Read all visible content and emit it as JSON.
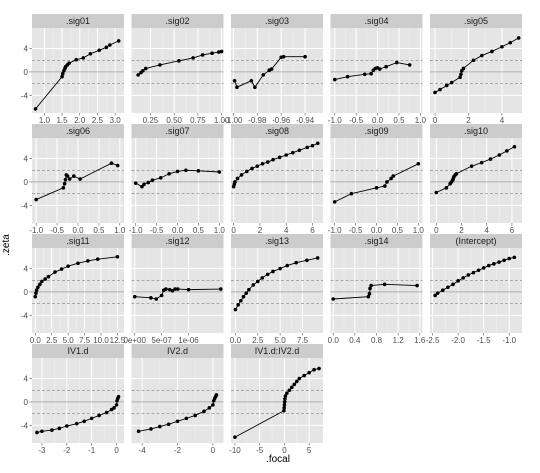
{
  "figure": {
    "xlabel": ".focal",
    "ylabel": ".zeta",
    "colors": {
      "panel_bg": "#e5e5e5",
      "strip_bg": "#cccccc",
      "grid_major": "#ffffff",
      "grid_minor": "#f2f2f2",
      "line": "#000000",
      "ref_line": "#808080"
    }
  },
  "chart_data": [
    {
      "type": "line",
      "title": ".sig01",
      "xlim": [
        0.65,
        3.25
      ],
      "ylim": [
        -7,
        7.5
      ],
      "xticks": [
        1.0,
        1.5,
        2.0,
        2.5,
        3.0
      ],
      "xticklabels": [
        "1.0",
        "1.5",
        "2.0",
        "2.5",
        "3.0"
      ],
      "x": [
        0.75,
        1.5,
        1.52,
        1.55,
        1.58,
        1.6,
        1.65,
        1.7,
        1.9,
        2.1,
        2.3,
        2.55,
        2.75,
        2.85,
        3.1
      ],
      "y": [
        -6.3,
        -0.8,
        -0.3,
        0.2,
        0.6,
        0.9,
        1.2,
        1.5,
        2.1,
        2.4,
        3.1,
        3.7,
        4.2,
        4.6,
        5.3
      ]
    },
    {
      "type": "line",
      "title": ".sig02",
      "xlim": [
        0.05,
        1.02
      ],
      "ylim": [
        -7,
        7.5
      ],
      "xticks": [
        0.25,
        0.5,
        0.75,
        1.0
      ],
      "xticklabels": [
        "0.25",
        "0.50",
        "0.75",
        "1.00"
      ],
      "x": [
        0.12,
        0.15,
        0.17,
        0.2,
        0.35,
        0.55,
        0.7,
        0.8,
        0.9,
        0.97,
        1.0
      ],
      "y": [
        -0.5,
        -0.1,
        0.2,
        0.6,
        1.2,
        1.9,
        2.4,
        2.9,
        3.2,
        3.4,
        3.5
      ]
    },
    {
      "type": "line",
      "title": ".sig03",
      "xlim": [
        -1.002,
        -0.925
      ],
      "ylim": [
        -7,
        7.5
      ],
      "xticks": [
        -1.0,
        -0.98,
        -0.96,
        -0.94
      ],
      "xticklabels": [
        "-1.00",
        "-0.98",
        "-0.96",
        "-0.94"
      ],
      "x": [
        -0.999,
        -0.997,
        -0.985,
        -0.982,
        -0.975,
        -0.97,
        -0.968,
        -0.96,
        -0.958,
        -0.94
      ],
      "y": [
        -1.5,
        -2.6,
        -1.5,
        -2.6,
        -0.5,
        0.3,
        0.5,
        2.5,
        2.6,
        2.6
      ]
    },
    {
      "type": "line",
      "title": ".sig04",
      "xlim": [
        -1.1,
        1.05
      ],
      "ylim": [
        -7,
        7.5
      ],
      "xticks": [
        -1.0,
        -0.5,
        0.0,
        0.5,
        1.0
      ],
      "xticklabels": [
        "-1.0",
        "-0.5",
        "0.0",
        "0.5",
        "1.0"
      ],
      "x": [
        -1.0,
        -0.7,
        -0.3,
        -0.15,
        -0.1,
        -0.05,
        0.0,
        0.05,
        0.2,
        0.45,
        0.75
      ],
      "y": [
        -1.3,
        -0.8,
        -0.4,
        -0.3,
        0.3,
        0.6,
        0.7,
        0.5,
        0.9,
        1.6,
        1.2
      ]
    },
    {
      "type": "line",
      "title": ".sig05",
      "xlim": [
        -0.3,
        5.2
      ],
      "ylim": [
        -7,
        7.5
      ],
      "xticks": [
        0,
        2,
        4
      ],
      "xticklabels": [
        "0",
        "2",
        "4"
      ],
      "x": [
        0.0,
        0.3,
        0.7,
        1.0,
        1.5,
        1.55,
        1.6,
        1.7,
        2.3,
        2.8,
        3.4,
        4.0,
        4.5,
        5.0
      ],
      "y": [
        -3.5,
        -3.0,
        -2.3,
        -1.8,
        -0.9,
        -0.4,
        0.2,
        0.6,
        2.0,
        2.8,
        3.5,
        4.3,
        5.0,
        5.8
      ]
    },
    {
      "type": "line",
      "title": ".sig06",
      "xlim": [
        -1.1,
        1.1
      ],
      "ylim": [
        -7,
        7.5
      ],
      "xticks": [
        -1.0,
        -0.5,
        0.0,
        0.5,
        1.0
      ],
      "xticklabels": [
        "-1.0",
        "-0.5",
        "0.0",
        "0.5",
        "1.0"
      ],
      "x": [
        -1.0,
        -0.35,
        -0.32,
        -0.3,
        -0.28,
        -0.25,
        -0.2,
        -0.1,
        0.05,
        0.8,
        0.95
      ],
      "y": [
        -3.0,
        -1.0,
        -0.3,
        0.4,
        1.2,
        1.0,
        0.5,
        1.0,
        0.5,
        3.2,
        2.8
      ]
    },
    {
      "type": "line",
      "title": ".sig07",
      "xlim": [
        -1.1,
        1.1
      ],
      "ylim": [
        -7,
        7.5
      ],
      "xticks": [
        -1.0,
        -0.5,
        0.0,
        0.5,
        1.0
      ],
      "xticklabels": [
        "-1.0",
        "-0.5",
        "0.0",
        "0.5",
        "1.0"
      ],
      "x": [
        -1.0,
        -0.85,
        -0.8,
        -0.7,
        -0.6,
        -0.4,
        -0.2,
        0.0,
        0.2,
        0.5,
        1.0
      ],
      "y": [
        -0.2,
        -0.8,
        -0.4,
        -0.1,
        0.3,
        0.7,
        1.4,
        1.8,
        2.0,
        1.9,
        1.7
      ]
    },
    {
      "type": "line",
      "title": ".sig08",
      "xlim": [
        -0.2,
        6.8
      ],
      "ylim": [
        -7,
        7.5
      ],
      "xticks": [
        0,
        2,
        4,
        6
      ],
      "xticklabels": [
        "0",
        "2",
        "4",
        "6"
      ],
      "x": [
        0.0,
        0.05,
        0.1,
        0.3,
        0.6,
        1.0,
        1.4,
        1.8,
        2.2,
        2.6,
        3.0,
        3.5,
        4.0,
        4.5,
        5.0,
        5.6,
        6.0,
        6.4
      ],
      "y": [
        -0.8,
        -0.4,
        0.0,
        0.6,
        1.2,
        1.8,
        2.3,
        2.7,
        3.1,
        3.4,
        3.8,
        4.2,
        4.6,
        5.0,
        5.4,
        5.9,
        6.2,
        6.6
      ]
    },
    {
      "type": "line",
      "title": ".sig09",
      "xlim": [
        -1.1,
        1.1
      ],
      "ylim": [
        -7,
        7.5
      ],
      "xticks": [
        -1.0,
        -0.5,
        0.0,
        0.5,
        1.0
      ],
      "xticklabels": [
        "-1.0",
        "-0.5",
        "0.0",
        "0.5",
        "1.0"
      ],
      "x": [
        -1.0,
        -0.6,
        0.0,
        0.2,
        0.25,
        0.35,
        0.4,
        1.0
      ],
      "y": [
        -3.4,
        -2.0,
        -1.0,
        -0.7,
        0.0,
        0.6,
        1.0,
        3.1
      ]
    },
    {
      "type": "line",
      "title": ".sig10",
      "xlim": [
        -0.5,
        6.8
      ],
      "ylim": [
        -7,
        7.5
      ],
      "xticks": [
        0,
        2,
        4,
        6
      ],
      "xticklabels": [
        "0",
        "2",
        "4",
        "6"
      ],
      "x": [
        0.0,
        0.8,
        1.1,
        1.2,
        1.3,
        1.35,
        1.4,
        1.5,
        1.6,
        2.8,
        3.6,
        4.3,
        5.0,
        5.6,
        6.2
      ],
      "y": [
        -1.8,
        -1.0,
        -0.3,
        0.0,
        0.3,
        0.6,
        0.9,
        1.2,
        1.4,
        2.7,
        3.3,
        3.9,
        4.6,
        5.3,
        6.0
      ]
    },
    {
      "type": "line",
      "title": ".sig11",
      "xlim": [
        -0.5,
        13.5
      ],
      "ylim": [
        -7,
        7.5
      ],
      "xticks": [
        0.0,
        2.5,
        5.0,
        7.5,
        10.0,
        12.5
      ],
      "xticklabels": [
        "0.0",
        "2.5",
        "5.0",
        "7.5",
        "10.0",
        "12.5"
      ],
      "x": [
        0.0,
        0.1,
        0.2,
        0.4,
        0.7,
        1.0,
        1.5,
        2.0,
        3.0,
        4.0,
        5.0,
        6.5,
        8.0,
        9.5,
        12.5
      ],
      "y": [
        -0.8,
        -0.2,
        0.3,
        0.8,
        1.3,
        1.8,
        2.2,
        2.6,
        3.4,
        3.9,
        4.4,
        4.9,
        5.3,
        5.6,
        6.0
      ]
    },
    {
      "type": "line",
      "title": ".sig12",
      "xlim": [
        -6e-08,
        1.65e-06
      ],
      "ylim": [
        -7,
        7.5
      ],
      "xticks": [
        0,
        5e-07,
        1e-06
      ],
      "xticklabels": [
        "0e+00",
        "5e-07",
        "1e-06"
      ],
      "x": [
        0.0,
        3e-07,
        4e-07,
        5e-07,
        5.4e-07,
        5.8e-07,
        6.5e-07,
        7e-07,
        7.5e-07,
        8e-07,
        1e-06,
        1.6e-06
      ],
      "y": [
        -0.8,
        -1.0,
        -1.2,
        -0.6,
        0.3,
        0.5,
        0.4,
        0.2,
        0.5,
        0.5,
        0.4,
        0.5
      ]
    },
    {
      "type": "line",
      "title": ".sig13",
      "xlim": [
        -0.5,
        9.8
      ],
      "ylim": [
        -7,
        7.5
      ],
      "xticks": [
        0.0,
        2.5,
        5.0,
        7.5
      ],
      "xticklabels": [
        "0.0",
        "2.5",
        "5.0",
        "7.5"
      ],
      "x": [
        0.0,
        0.3,
        0.6,
        0.9,
        1.2,
        1.5,
        2.0,
        2.5,
        3.0,
        3.6,
        4.2,
        5.0,
        5.8,
        6.8,
        8.0,
        9.2
      ],
      "y": [
        -3.0,
        -2.2,
        -1.5,
        -0.8,
        -0.2,
        0.4,
        1.2,
        1.8,
        2.4,
        3.0,
        3.5,
        4.0,
        4.5,
        5.0,
        5.4,
        5.8
      ]
    },
    {
      "type": "line",
      "title": ".sig14",
      "xlim": [
        -0.05,
        1.65
      ],
      "ylim": [
        -7,
        7.5
      ],
      "xticks": [
        0.0,
        0.4,
        0.8,
        1.2,
        1.6
      ],
      "xticklabels": [
        "0.0",
        "0.4",
        "0.8",
        "1.2",
        "1.6"
      ],
      "x": [
        0.0,
        0.65,
        0.67,
        0.68,
        0.7,
        0.95,
        1.55
      ],
      "y": [
        -1.2,
        -0.8,
        -0.3,
        0.6,
        1.1,
        1.3,
        1.1
      ]
    },
    {
      "type": "line",
      "title": "(Intercept)",
      "xlim": [
        -2.55,
        -0.75
      ],
      "ylim": [
        -7,
        7.5
      ],
      "xticks": [
        -2.5,
        -2.0,
        -1.5,
        -1.0
      ],
      "xticklabels": [
        "-2.5",
        "-2.0",
        "-1.5",
        "-1.0"
      ],
      "x": [
        -2.45,
        -2.4,
        -2.3,
        -2.2,
        -2.1,
        -2.0,
        -1.9,
        -1.8,
        -1.7,
        -1.6,
        -1.5,
        -1.4,
        -1.3,
        -1.2,
        -1.1,
        -1.0,
        -0.9
      ],
      "y": [
        -0.6,
        -0.2,
        0.3,
        0.8,
        1.3,
        1.9,
        2.4,
        2.9,
        3.3,
        3.7,
        4.1,
        4.5,
        4.8,
        5.1,
        5.4,
        5.7,
        5.9
      ]
    },
    {
      "type": "line",
      "title": "IV1.d",
      "xlim": [
        -3.4,
        0.3
      ],
      "ylim": [
        -7,
        7.5
      ],
      "xticks": [
        -3,
        -2,
        -1,
        0
      ],
      "xticklabels": [
        "-3",
        "-2",
        "-1",
        "0"
      ],
      "x": [
        -3.2,
        -3.0,
        -2.6,
        -2.3,
        -2.0,
        -1.6,
        -1.3,
        -1.0,
        -0.7,
        -0.4,
        -0.2,
        -0.1,
        0.0,
        0.02,
        0.05,
        0.08
      ],
      "y": [
        -5.2,
        -5.0,
        -4.8,
        -4.5,
        -4.1,
        -3.7,
        -3.3,
        -2.8,
        -2.3,
        -1.8,
        -1.3,
        -1.0,
        -0.5,
        0.2,
        0.6,
        0.9
      ]
    },
    {
      "type": "line",
      "title": "IV2.d",
      "xlim": [
        -4.6,
        0.6
      ],
      "ylim": [
        -7,
        7.5
      ],
      "xticks": [
        -4,
        -2,
        0
      ],
      "xticklabels": [
        "-4",
        "-2",
        "0"
      ],
      "x": [
        -4.2,
        -3.5,
        -3.0,
        -2.5,
        -2.0,
        -1.5,
        -1.0,
        -0.5,
        -0.2,
        0.0,
        0.05,
        0.1,
        0.15,
        0.2
      ],
      "y": [
        -5.0,
        -4.6,
        -4.2,
        -3.8,
        -3.3,
        -2.8,
        -2.3,
        -1.6,
        -1.0,
        -0.5,
        0.2,
        0.6,
        0.9,
        1.2
      ]
    },
    {
      "type": "line",
      "title": "IV1.d:IV2.d",
      "xlim": [
        -10.8,
        7.8
      ],
      "ylim": [
        -7,
        7.5
      ],
      "xticks": [
        -10,
        -5,
        0,
        5
      ],
      "xticklabels": [
        "-10",
        "-5",
        "0",
        "5"
      ],
      "x": [
        -10.0,
        -0.1,
        -0.05,
        0.0,
        0.05,
        0.1,
        0.2,
        0.5,
        1.0,
        1.5,
        2.0,
        2.5,
        3.0,
        4.0,
        5.0,
        6.0,
        7.0
      ],
      "y": [
        -6.0,
        -1.5,
        -1.0,
        -0.5,
        0.0,
        0.5,
        1.0,
        1.5,
        2.0,
        2.5,
        3.0,
        3.5,
        4.0,
        4.5,
        5.0,
        5.5,
        5.7
      ]
    }
  ],
  "shared_y": {
    "ticks": [
      -4,
      0,
      4
    ],
    "ticklabels": [
      "-4",
      "0",
      "4"
    ],
    "ref_lines": [
      -1.96,
      1.96
    ]
  }
}
